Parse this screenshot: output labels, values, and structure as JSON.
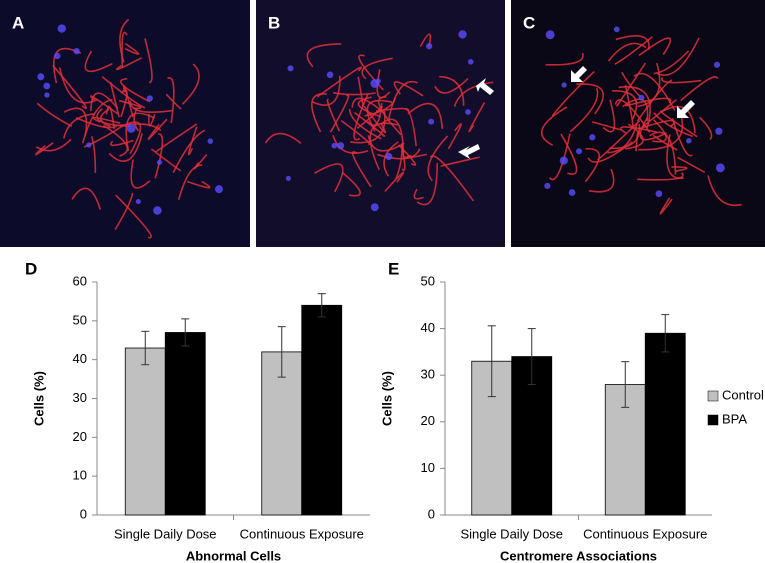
{
  "panel_labels": [
    "A",
    "B",
    "C"
  ],
  "chart_data": [
    {
      "panel": "D",
      "type": "bar",
      "xlabel": "Abnormal Cells",
      "ylabel": "Cells (%)",
      "categories": [
        "Single Daily Dose",
        "Continuous Exposure"
      ],
      "series": [
        {
          "color": "#c0c0c0",
          "values": [
            43,
            42
          ],
          "errors": [
            4.3,
            6.5
          ]
        },
        {
          "color": "#000000",
          "values": [
            47,
            54
          ],
          "errors": [
            3.5,
            3
          ]
        }
      ],
      "ylim": [
        0,
        60
      ],
      "yticks": [
        0,
        10,
        20,
        30,
        40,
        50,
        60
      ],
      "grid": false
    },
    {
      "panel": "E",
      "type": "bar",
      "xlabel": "Centromere Associations",
      "ylabel": "Cells (%)",
      "categories": [
        "Single Daily Dose",
        "Continuous Exposure"
      ],
      "series": [
        {
          "name": "Control",
          "color": "#c0c0c0",
          "values": [
            33,
            28
          ],
          "errors": [
            7.6,
            4.9
          ]
        },
        {
          "name": "BPA",
          "color": "#000000",
          "values": [
            34,
            39
          ],
          "errors": [
            6,
            4
          ]
        }
      ],
      "ylim": [
        0,
        50
      ],
      "yticks": [
        0,
        10,
        20,
        30,
        40,
        50
      ],
      "grid": false,
      "legend": "right"
    }
  ]
}
